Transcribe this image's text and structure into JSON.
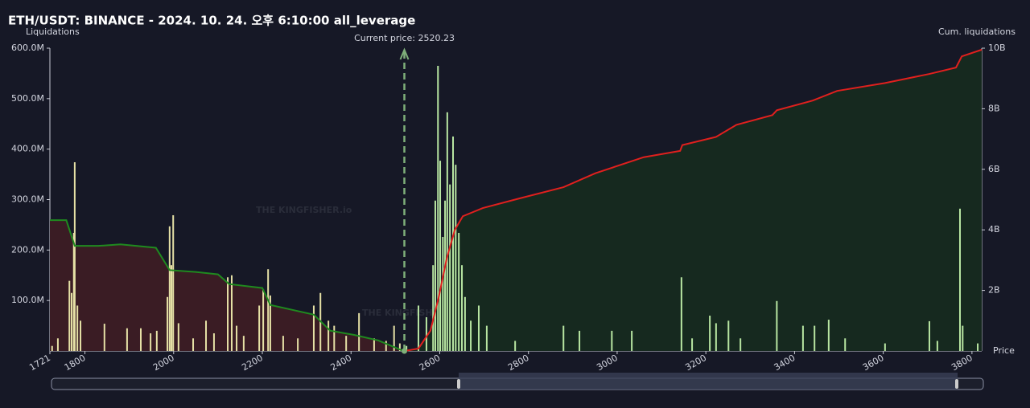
{
  "chart_data": {
    "type": "liquidation-map",
    "title": "ETH/USDT: BINANCE - 2024. 10. 24. 오후 6:10:00 all_leverage",
    "y_label": "Liquidations",
    "y2_label": "Cum. liquidations",
    "x_label": "Price",
    "watermark": "THE KINGFISHER.io",
    "annotation": "Current price: 2520.23",
    "current_price": 2520.23,
    "xlim": [
      1721,
      3822
    ],
    "xticks": [
      1721,
      1800,
      2000,
      2200,
      2400,
      2600,
      2800,
      3000,
      3200,
      3400,
      3600,
      3800
    ],
    "ylim": [
      0,
      600
    ],
    "yticks": [
      {
        "value": 100,
        "label": "100.0M"
      },
      {
        "value": 200,
        "label": "200.0M"
      },
      {
        "value": 300,
        "label": "300.0M"
      },
      {
        "value": 400,
        "label": "400.0M"
      },
      {
        "value": 500,
        "label": "500.0M"
      },
      {
        "value": 600,
        "label": "600.0M"
      }
    ],
    "y2lim": [
      0,
      10
    ],
    "y2ticks": [
      {
        "value": 2,
        "label": "2B"
      },
      {
        "value": 4,
        "label": "4B"
      },
      {
        "value": 6,
        "label": "6B"
      },
      {
        "value": 8,
        "label": "8B"
      },
      {
        "value": 10,
        "label": "10B"
      }
    ],
    "long_bars": {
      "color": "#e6e1a6",
      "x": [
        1726,
        1739,
        1765,
        1770,
        1775,
        1777,
        1783,
        1790,
        1844,
        1895,
        1926,
        1948,
        1962,
        1986,
        1991,
        1995,
        1999,
        2011,
        2044,
        2073,
        2091,
        2122,
        2131,
        2142,
        2158,
        2193,
        2202,
        2213,
        2218,
        2247,
        2280,
        2316,
        2331,
        2349,
        2362,
        2389,
        2418,
        2452,
        2479,
        2497,
        2510
      ],
      "values": [
        10,
        25,
        139,
        115,
        234,
        374,
        90,
        60,
        54,
        45,
        45,
        35,
        40,
        107,
        247,
        170,
        269,
        55,
        25,
        60,
        35,
        146,
        150,
        50,
        30,
        90,
        122,
        162,
        110,
        30,
        25,
        90,
        115,
        60,
        50,
        30,
        75,
        25,
        20,
        50,
        15
      ]
    },
    "short_bars": {
      "color": "#b8e6a2",
      "x": [
        2525,
        2552,
        2570,
        2585,
        2590,
        2596,
        2601,
        2607,
        2612,
        2617,
        2623,
        2630,
        2636,
        2643,
        2650,
        2657,
        2670,
        2688,
        2706,
        2770,
        2879,
        2915,
        2988,
        3033,
        3145,
        3169,
        3209,
        3223,
        3251,
        3278,
        3360,
        3419,
        3445,
        3477,
        3514,
        3604,
        3704,
        3722,
        3773,
        3779,
        3813
      ],
      "values": [
        10,
        90,
        67,
        170,
        298,
        565,
        377,
        226,
        298,
        473,
        330,
        425,
        369,
        234,
        170,
        107,
        60,
        90,
        50,
        20,
        50,
        40,
        40,
        40,
        146,
        25,
        70,
        55,
        60,
        25,
        99,
        50,
        50,
        62,
        25,
        15,
        59,
        20,
        282,
        50,
        15
      ]
    },
    "cum_long": {
      "color": "#1f8a1f",
      "fill": "#3a1c24",
      "x": [
        1721,
        1758,
        1777,
        1830,
        1880,
        1960,
        1991,
        2050,
        2100,
        2125,
        2200,
        2218,
        2316,
        2353,
        2407,
        2461,
        2497,
        2518
      ],
      "values": [
        4.32,
        4.32,
        3.47,
        3.47,
        3.52,
        3.41,
        2.67,
        2.61,
        2.53,
        2.21,
        2.08,
        1.52,
        1.2,
        0.67,
        0.53,
        0.35,
        0.13,
        0
      ]
    },
    "cum_short": {
      "color": "#e0201e",
      "fill": "#16291f",
      "x": [
        2521,
        2552,
        2579,
        2597,
        2616,
        2634,
        2652,
        2697,
        2788,
        2879,
        2951,
        3060,
        3142,
        3147,
        3223,
        3269,
        3350,
        3360,
        3441,
        3496,
        3604,
        3704,
        3764,
        3777,
        3822
      ],
      "values": [
        0,
        0.08,
        0.67,
        1.73,
        3.07,
        4.0,
        4.45,
        4.72,
        5.07,
        5.41,
        5.87,
        6.4,
        6.61,
        6.8,
        7.07,
        7.47,
        7.79,
        7.95,
        8.27,
        8.59,
        8.85,
        9.15,
        9.36,
        9.73,
        9.95
      ]
    }
  }
}
